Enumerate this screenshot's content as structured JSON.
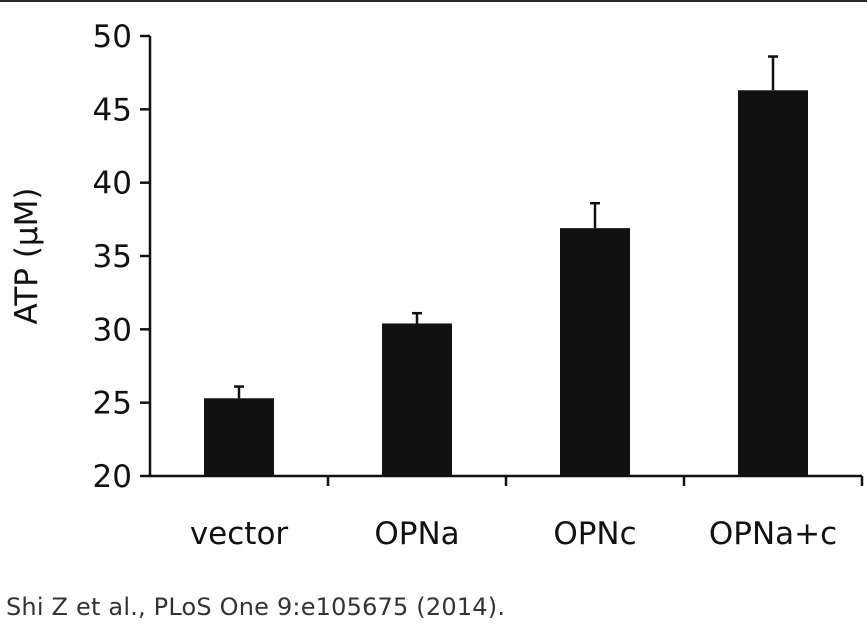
{
  "chart_data": {
    "type": "bar",
    "categories": [
      "vector",
      "OPNa",
      "OPNc",
      "OPNa+c"
    ],
    "values": [
      25.3,
      30.4,
      36.9,
      46.3
    ],
    "errors": [
      0.8,
      0.7,
      1.7,
      2.3
    ],
    "title": "",
    "xlabel": "",
    "ylabel": "ATP (μM)",
    "ylim": [
      20,
      50
    ],
    "yticks": [
      20,
      25,
      30,
      35,
      40,
      45,
      50
    ],
    "grid": false,
    "legend": "none",
    "bar_color": "#111111"
  },
  "citation": "Shi Z et al., PLoS One 9:e105675 (2014)."
}
